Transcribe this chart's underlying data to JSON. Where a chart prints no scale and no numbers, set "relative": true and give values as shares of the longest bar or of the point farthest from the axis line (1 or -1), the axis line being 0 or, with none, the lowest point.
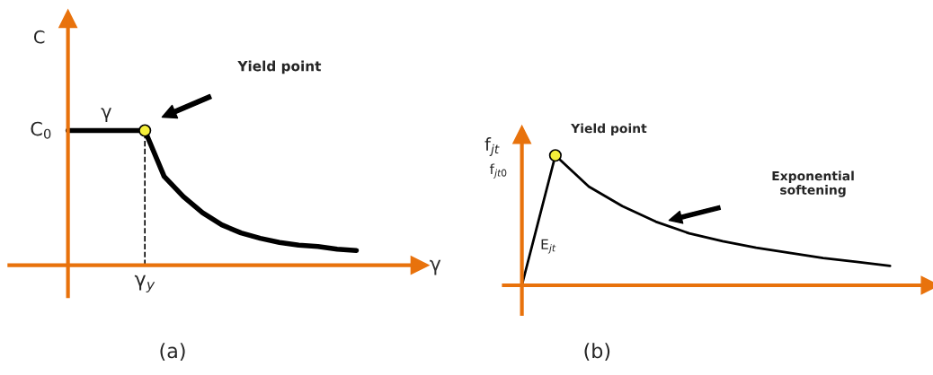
{
  "chart_data": [
    {
      "type": "line",
      "relative": true,
      "xlabel": "γ",
      "ylabel": "C",
      "categories": [
        null,
        null,
        null,
        null,
        null,
        null,
        null,
        null,
        null,
        null,
        null,
        null,
        null,
        null,
        null,
        null
      ],
      "series": [
        {
          "color": "#000000",
          "values": [
            1,
            1,
            1,
            1,
            1,
            0.66,
            0.51,
            0.39,
            0.3,
            0.24,
            0.2,
            0.17,
            0.15,
            0.14,
            0.12,
            0.11
          ]
        }
      ],
      "annotations": [
        "C$_{0}$",
        "γ",
        "γ$_{y}$",
        "Yield point",
        "(a)"
      ]
    },
    {
      "type": "line",
      "relative": true,
      "ylabel": "f$_{jt}$",
      "categories": [
        null,
        null,
        null,
        null,
        null,
        null,
        null,
        null,
        null,
        null,
        null,
        null
      ],
      "series": [
        {
          "color": "#000000",
          "values": [
            0,
            1,
            0.76,
            0.61,
            0.49,
            0.4,
            0.34,
            0.29,
            0.25,
            0.21,
            0.18,
            0.15
          ]
        }
      ],
      "annotations": [
        "f$_{jt0}$",
        "E$_{jt}$",
        "Yield point",
        "Exponential\nsoftening",
        "(b)"
      ]
    }
  ]
}
